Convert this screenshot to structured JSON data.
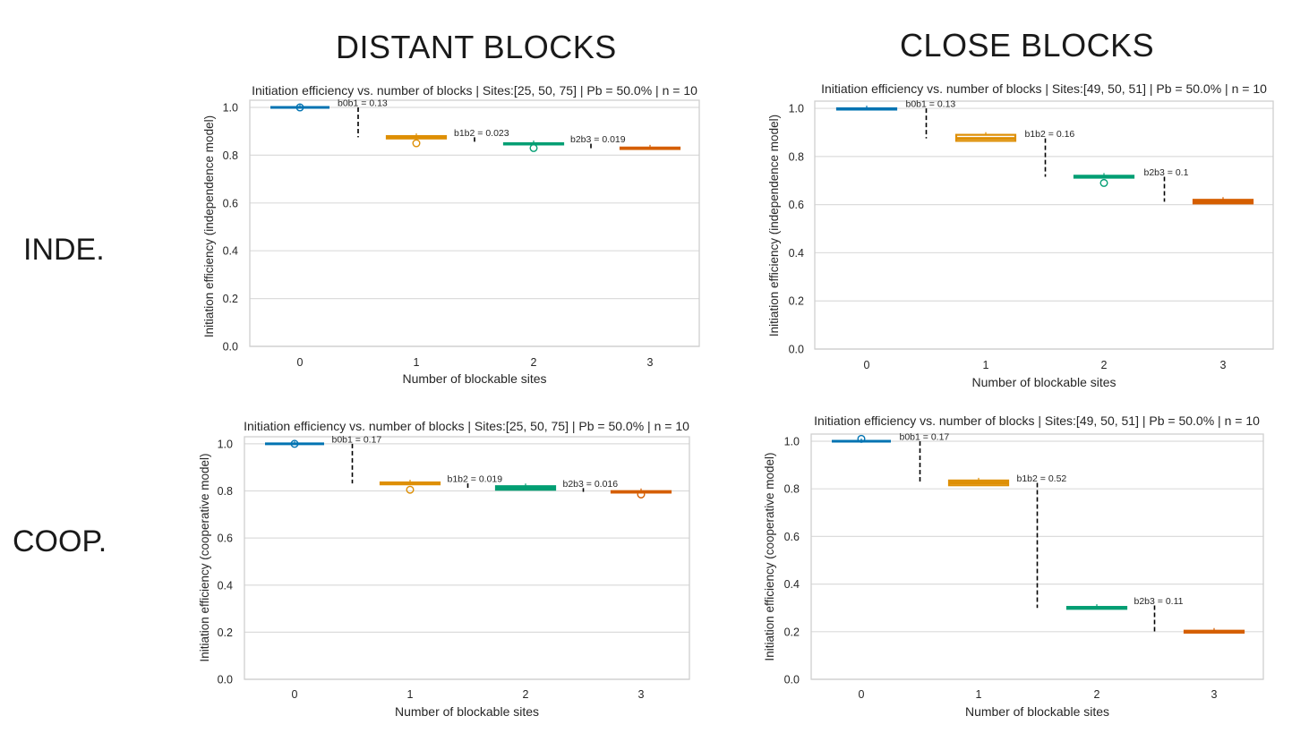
{
  "column_headers": [
    "DISTANT BLOCKS",
    "CLOSE BLOCKS"
  ],
  "row_headers": [
    "INDE.",
    "COOP."
  ],
  "colors": [
    "#0173b2",
    "#de8f05",
    "#029e73",
    "#d55e00"
  ],
  "chart_data": [
    {
      "type": "box",
      "title": "Initiation efficiency vs. number of blocks | Sites:[25, 50, 75] | Pb = 50.0% | n = 10",
      "xlabel": "Number of blockable sites",
      "ylabel": "Initiation efficiency (independence model)",
      "categories": [
        "0",
        "1",
        "2",
        "3"
      ],
      "ylim": [
        0,
        1.03
      ],
      "yticks": [
        "0.0",
        "0.2",
        "0.4",
        "0.6",
        "0.8",
        "1.0"
      ],
      "grid": true,
      "boxes": [
        {
          "q1": 1.0,
          "median": 1.0,
          "q3": 1.0,
          "outliers": [
            1.0
          ]
        },
        {
          "q1": 0.87,
          "median": 0.875,
          "q3": 0.88,
          "outliers": [
            0.85
          ]
        },
        {
          "q1": 0.845,
          "median": 0.848,
          "q3": 0.85,
          "outliers": [
            0.83
          ]
        },
        {
          "q1": 0.826,
          "median": 0.829,
          "q3": 0.832,
          "outliers": []
        }
      ],
      "annotations": [
        {
          "label": "b0b1 = 0.13",
          "pos": 0.5,
          "y_top": 1.0,
          "y_bottom": 0.875
        },
        {
          "label": "b1b2 = 0.023",
          "pos": 1.5,
          "y_top": 0.875,
          "y_bottom": 0.852
        },
        {
          "label": "b2b3 = 0.019",
          "pos": 2.5,
          "y_top": 0.848,
          "y_bottom": 0.829
        }
      ]
    },
    {
      "type": "box",
      "title": "Initiation efficiency vs. number of blocks | Sites:[49, 50, 51] | Pb = 50.0% | n = 10",
      "xlabel": "Number of blockable sites",
      "ylabel": "Initiation efficiency (independence model)",
      "categories": [
        "0",
        "1",
        "2",
        "3"
      ],
      "ylim": [
        0,
        1.03
      ],
      "yticks": [
        "0.0",
        "0.2",
        "0.4",
        "0.6",
        "0.8",
        "1.0"
      ],
      "grid": true,
      "boxes": [
        {
          "q1": 0.995,
          "median": 0.998,
          "q3": 1.0,
          "outliers": []
        },
        {
          "q1": 0.865,
          "median": 0.875,
          "q3": 0.89,
          "outliers": []
        },
        {
          "q1": 0.712,
          "median": 0.716,
          "q3": 0.72,
          "outliers": [
            0.69
          ]
        },
        {
          "q1": 0.605,
          "median": 0.612,
          "q3": 0.62,
          "outliers": []
        }
      ],
      "annotations": [
        {
          "label": "b0b1 = 0.13",
          "pos": 0.5,
          "y_top": 1.0,
          "y_bottom": 0.875
        },
        {
          "label": "b1b2 = 0.16",
          "pos": 1.5,
          "y_top": 0.875,
          "y_bottom": 0.716
        },
        {
          "label": "b2b3 = 0.1",
          "pos": 2.5,
          "y_top": 0.716,
          "y_bottom": 0.612
        }
      ]
    },
    {
      "type": "box",
      "title": "Initiation efficiency vs. number of blocks | Sites:[25, 50, 75] | Pb = 50.0% | n = 10",
      "xlabel": "Number of blockable sites",
      "ylabel": "Initiation efficiency (cooperative model)",
      "categories": [
        "0",
        "1",
        "2",
        "3"
      ],
      "ylim": [
        0,
        1.03
      ],
      "yticks": [
        "0.0",
        "0.2",
        "0.4",
        "0.6",
        "0.8",
        "1.0"
      ],
      "grid": true,
      "boxes": [
        {
          "q1": 1.0,
          "median": 1.0,
          "q3": 1.0,
          "outliers": [
            1.0
          ]
        },
        {
          "q1": 0.828,
          "median": 0.832,
          "q3": 0.836,
          "outliers": [
            0.805
          ]
        },
        {
          "q1": 0.805,
          "median": 0.812,
          "q3": 0.82,
          "outliers": []
        },
        {
          "q1": 0.793,
          "median": 0.796,
          "q3": 0.799,
          "outliers": [
            0.785
          ]
        }
      ],
      "annotations": [
        {
          "label": "b0b1 = 0.17",
          "pos": 0.5,
          "y_top": 1.0,
          "y_bottom": 0.832
        },
        {
          "label": "b1b2 = 0.019",
          "pos": 1.5,
          "y_top": 0.832,
          "y_bottom": 0.813
        },
        {
          "label": "b2b3 = 0.016",
          "pos": 2.5,
          "y_top": 0.812,
          "y_bottom": 0.796
        }
      ]
    },
    {
      "type": "box",
      "title": "Initiation efficiency vs. number of blocks | Sites:[49, 50, 51] | Pb = 50.0% | n = 10",
      "xlabel": "Number of blockable sites",
      "ylabel": "Initiation efficiency (cooperative model)",
      "categories": [
        "0",
        "1",
        "2",
        "3"
      ],
      "ylim": [
        0,
        1.03
      ],
      "yticks": [
        "0.0",
        "0.2",
        "0.4",
        "0.6",
        "0.8",
        "1.0"
      ],
      "grid": true,
      "boxes": [
        {
          "q1": 1.0,
          "median": 1.0,
          "q3": 1.0,
          "outliers": [
            1.01
          ]
        },
        {
          "q1": 0.815,
          "median": 0.825,
          "q3": 0.835,
          "outliers": []
        },
        {
          "q1": 0.296,
          "median": 0.3,
          "q3": 0.304,
          "outliers": []
        },
        {
          "q1": 0.196,
          "median": 0.2,
          "q3": 0.204,
          "outliers": []
        }
      ],
      "annotations": [
        {
          "label": "b0b1 = 0.17",
          "pos": 0.5,
          "y_top": 1.0,
          "y_bottom": 0.83
        },
        {
          "label": "b1b2 = 0.52",
          "pos": 1.5,
          "y_top": 0.825,
          "y_bottom": 0.3
        },
        {
          "label": "b2b3 = 0.11",
          "pos": 2.5,
          "y_top": 0.31,
          "y_bottom": 0.2
        }
      ]
    }
  ]
}
